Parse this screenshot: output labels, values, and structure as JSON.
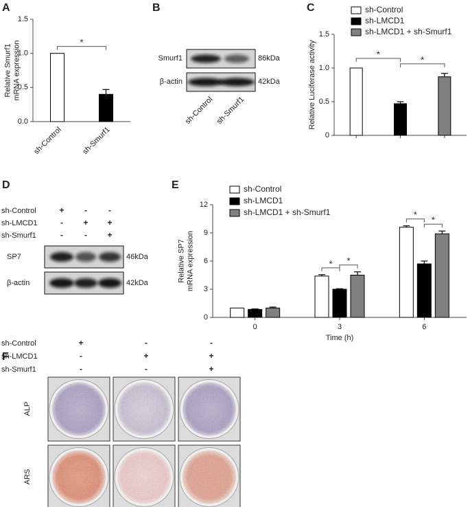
{
  "chart_data": [
    {
      "type": "bar",
      "panel": "A",
      "ylabel": [
        "Relative Smurf1",
        "mRNA expression"
      ],
      "categories": [
        "sh-Control",
        "sh-Smurf1"
      ],
      "values": [
        1.0,
        0.4
      ],
      "errors": [
        0,
        0.07
      ],
      "colors": [
        "#ffffff",
        "#000000"
      ],
      "ylim": [
        0,
        1.5
      ],
      "yticks": [
        {
          "value": 0,
          "label": "0.0"
        },
        0.5,
        {
          "value": 1,
          "label": "1.0"
        },
        1.5
      ],
      "significance": [
        {
          "text": "*",
          "between": [
            0,
            1
          ]
        }
      ]
    },
    {
      "type": "bar",
      "panel": "C",
      "ylabel": [
        "Relative Luciferase activity"
      ],
      "categories": [
        null,
        null,
        null
      ],
      "legend": [
        "sh-Control",
        "sh-LMCD1",
        "sh-LMCD1 + sh-Smurf1"
      ],
      "values": [
        1.0,
        0.47,
        0.87
      ],
      "errors": [
        0,
        0.03,
        0.05
      ],
      "colors": [
        "#ffffff",
        "#000000",
        "#808080"
      ],
      "ylim": [
        0,
        1.5
      ],
      "yticks": [
        0,
        0.5,
        {
          "value": 1,
          "label": "1.0"
        },
        1.5
      ],
      "significance": [
        {
          "text": "*",
          "between": [
            0,
            1
          ]
        },
        {
          "text": "*",
          "between": [
            1,
            2
          ]
        }
      ]
    },
    {
      "type": "grouped_bar",
      "panel": "E",
      "ylabel": [
        "Relative SP7",
        "mRNA expression"
      ],
      "xlabel": "Time (h)",
      "categories": [
        "0",
        "3",
        "6"
      ],
      "series": [
        {
          "name": "sh-Control",
          "color": "#ffffff",
          "values": [
            1.0,
            4.4,
            9.6
          ],
          "errors": [
            0,
            0.15,
            0.15
          ]
        },
        {
          "name": "sh-LMCD1",
          "color": "#000000",
          "values": [
            0.85,
            3.0,
            5.7
          ],
          "errors": [
            0.05,
            0.05,
            0.3
          ]
        },
        {
          "name": "sh-LMCD1 + sh-Smurf1",
          "color": "#808080",
          "values": [
            1.0,
            4.5,
            8.9
          ],
          "errors": [
            0.1,
            0.35,
            0.3
          ]
        }
      ],
      "ylim": [
        0,
        12
      ],
      "yticks": [
        0,
        3,
        6,
        9,
        12
      ],
      "significance": [
        {
          "text": "*",
          "group": 1,
          "between": [
            0,
            1
          ]
        },
        {
          "text": "*",
          "group": 1,
          "between": [
            1,
            2
          ]
        },
        {
          "text": "*",
          "group": 2,
          "between": [
            0,
            1
          ]
        },
        {
          "text": "*",
          "group": 2,
          "between": [
            1,
            2
          ]
        }
      ]
    }
  ],
  "blot_B": {
    "panel": "B",
    "rows": [
      {
        "protein": "Smurf1",
        "size": "86kDa"
      },
      {
        "protein": "β-actin",
        "size": "42kDa"
      }
    ],
    "lanes": [
      "sh-Control",
      "sh-Smurf1"
    ]
  },
  "blot_D": {
    "panel": "D",
    "conditions": [
      {
        "name": "sh-Control",
        "signs": [
          "+",
          "-",
          "-"
        ]
      },
      {
        "name": "sh-LMCD1",
        "signs": [
          "-",
          "+",
          "+"
        ]
      },
      {
        "name": "sh-Smurf1",
        "signs": [
          "-",
          "-",
          "+"
        ]
      }
    ],
    "rows": [
      {
        "protein": "SP7",
        "size": "46kDa"
      },
      {
        "protein": "β-actin",
        "size": "42kDa"
      }
    ]
  },
  "staining_F": {
    "panel": "F",
    "conditions": [
      {
        "name": "sh-Control",
        "signs": [
          "+",
          "-",
          "-"
        ]
      },
      {
        "name": "sh-LMCD1",
        "signs": [
          "-",
          "+",
          "+"
        ]
      },
      {
        "name": "sh-Smurf1",
        "signs": [
          "-",
          "-",
          "+"
        ]
      }
    ],
    "rows": [
      "ALP",
      "ARS"
    ]
  }
}
